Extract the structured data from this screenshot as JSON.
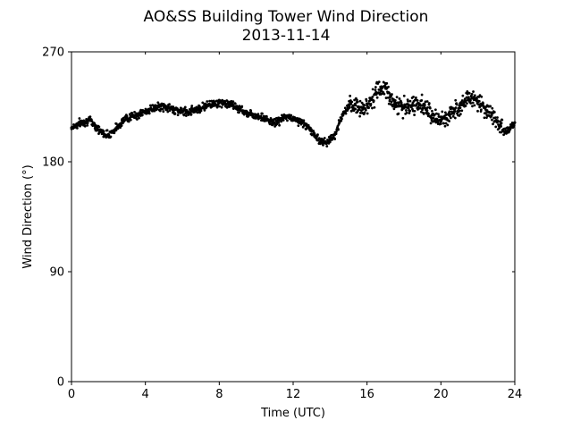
{
  "chart_data": {
    "type": "scatter",
    "title": "AO&SS Building Tower Wind Direction",
    "subtitle": "2013-11-14",
    "xlabel": "Time (UTC)",
    "ylabel": "Wind Direction (°)",
    "xlim": [
      0,
      24
    ],
    "ylim": [
      0,
      270
    ],
    "x_ticks": [
      0,
      4,
      8,
      12,
      16,
      20,
      24
    ],
    "y_ticks": [
      0,
      90,
      180,
      270
    ],
    "grid": false,
    "legend": "none",
    "marker_color": "#000000",
    "series": [
      {
        "x": [
          0.0,
          0.25,
          0.5,
          0.75,
          1.0,
          1.25,
          1.5,
          1.75,
          2.0,
          2.25,
          2.5,
          2.75,
          3.0,
          3.25,
          3.5,
          3.75,
          4.0,
          4.25,
          4.5,
          4.75,
          5.0,
          5.25,
          5.5,
          5.75,
          6.0,
          6.25,
          6.5,
          6.75,
          7.0,
          7.25,
          7.5,
          7.75,
          8.0,
          8.25,
          8.5,
          8.75,
          9.0,
          9.25,
          9.5,
          9.75,
          10.0,
          10.25,
          10.5,
          10.75,
          11.0,
          11.25,
          11.5,
          11.75,
          12.0,
          12.25,
          12.5,
          12.75,
          13.0,
          13.25,
          13.5,
          13.75,
          14.0,
          14.25,
          14.5,
          14.75,
          15.0,
          15.25,
          15.5,
          15.75,
          16.0,
          16.25,
          16.5,
          16.75,
          17.0,
          17.25,
          17.5,
          17.75,
          18.0,
          18.25,
          18.5,
          18.75,
          19.0,
          19.25,
          19.5,
          19.75,
          20.0,
          20.25,
          20.5,
          20.75,
          21.0,
          21.25,
          21.5,
          21.75,
          22.0,
          22.25,
          22.5,
          22.75,
          23.0,
          23.25,
          23.5,
          23.75,
          24.0
        ],
        "values": [
          208,
          210,
          212,
          213,
          214,
          210,
          206,
          203,
          202,
          205,
          209,
          213,
          216,
          217,
          218,
          219,
          221,
          223,
          224,
          225,
          225,
          224,
          223,
          222,
          221,
          221,
          222,
          223,
          224,
          226,
          227,
          228,
          228,
          228,
          227,
          226,
          224,
          222,
          220,
          219,
          218,
          217,
          215,
          213,
          212,
          214,
          216,
          217,
          215,
          214,
          212,
          209,
          205,
          200,
          197,
          196,
          198,
          202,
          212,
          220,
          224,
          226,
          225,
          224,
          226,
          231,
          236,
          240,
          240,
          233,
          228,
          226,
          224,
          224,
          226,
          228,
          226,
          222,
          218,
          215,
          213,
          215,
          219,
          223,
          226,
          229,
          232,
          232,
          229,
          226,
          222,
          219,
          214,
          209,
          205,
          208,
          212
        ]
      }
    ]
  }
}
